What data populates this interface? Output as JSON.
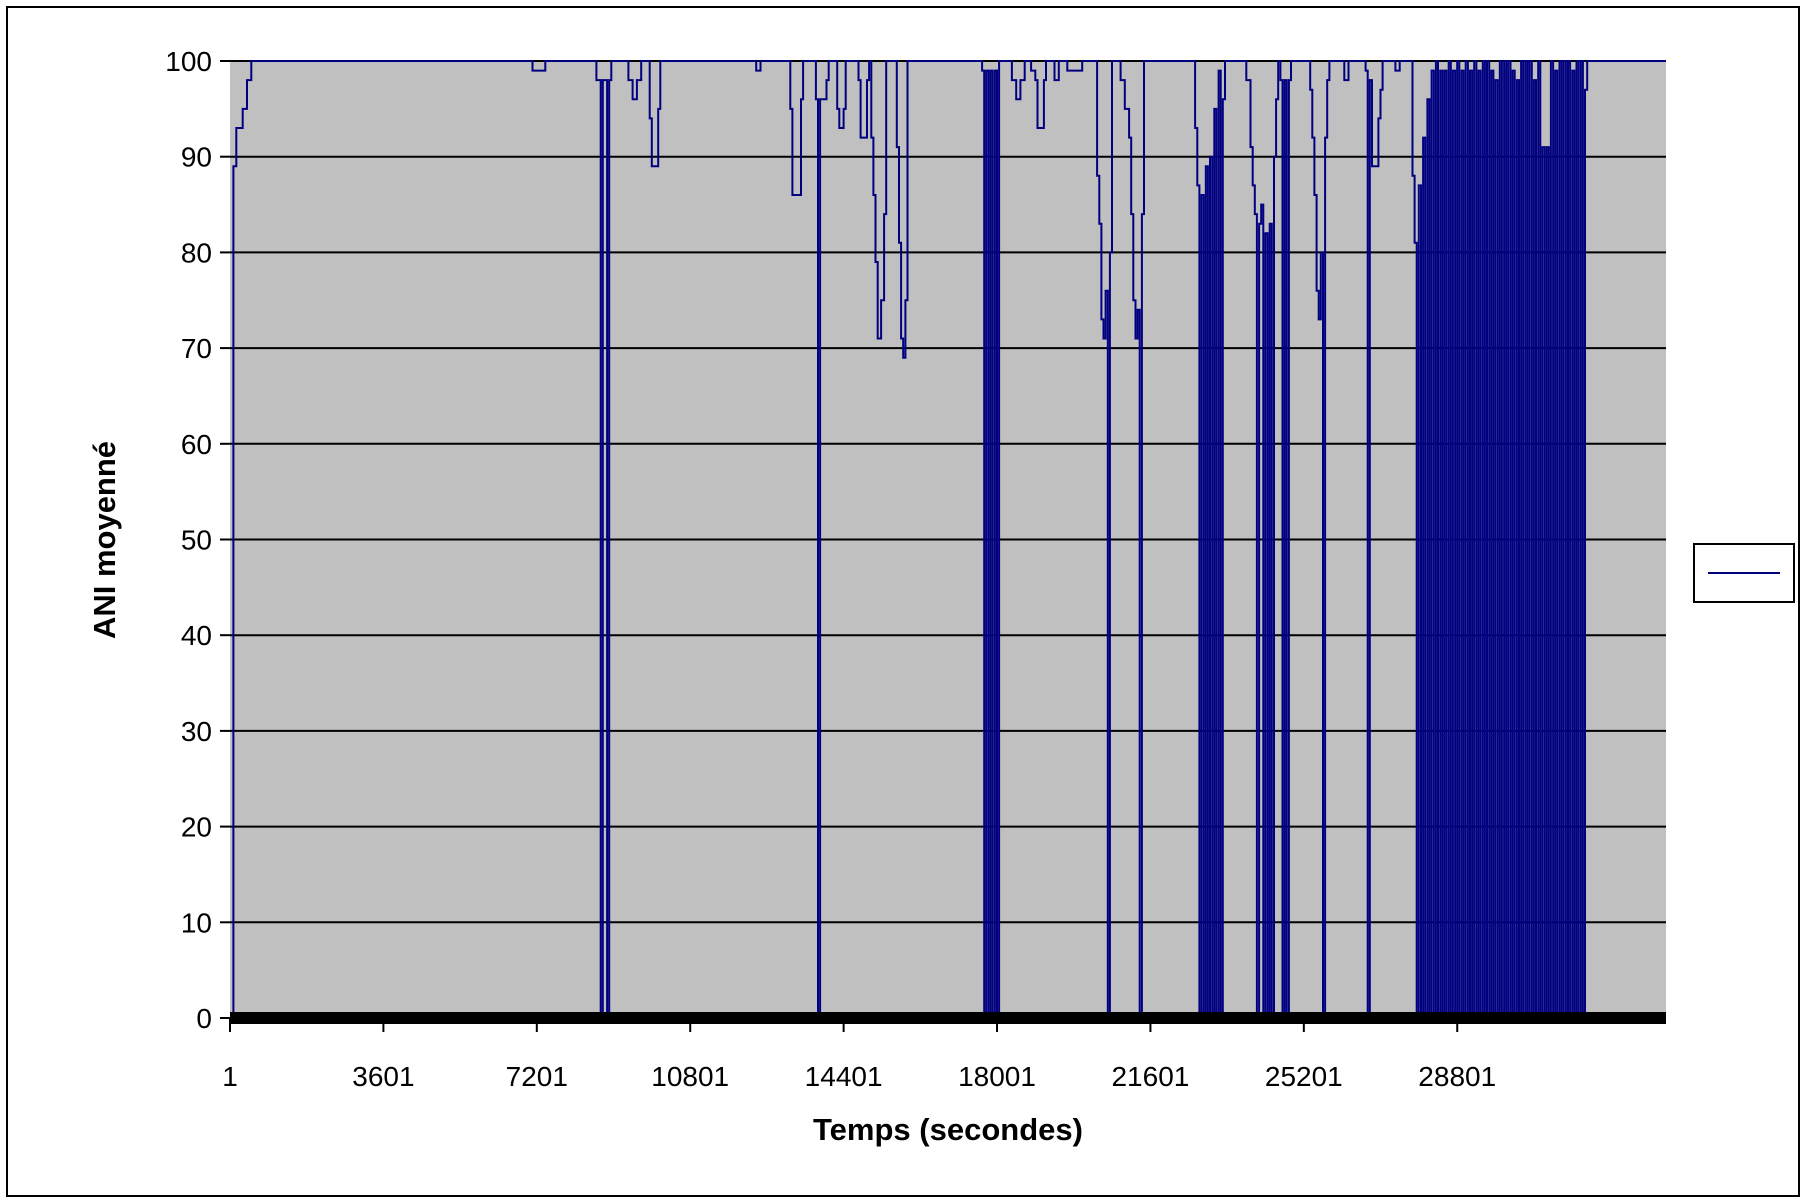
{
  "chart_data": {
    "type": "line",
    "title": "",
    "xlabel": "Temps (secondes)",
    "ylabel": "ANI moyenné",
    "xlim": [
      1,
      33700
    ],
    "ylim": [
      0,
      100
    ],
    "x_ticks": [
      "1",
      "3601",
      "7201",
      "10801",
      "14401",
      "18001",
      "21601",
      "25201",
      "28801"
    ],
    "y_ticks": [
      "0",
      "10",
      "20",
      "30",
      "40",
      "50",
      "60",
      "70",
      "80",
      "90",
      "100"
    ],
    "grid": "horizontal",
    "legend_position": "right",
    "colors": {
      "plot_background": "#c0c0c0",
      "series": "#000080",
      "gridline": "#000000"
    },
    "series": [
      {
        "points": [
          [
            1,
            0
          ],
          [
            60,
            0
          ],
          [
            80,
            89
          ],
          [
            150,
            93
          ],
          [
            300,
            95
          ],
          [
            400,
            98
          ],
          [
            500,
            100
          ],
          [
            7000,
            100
          ],
          [
            7100,
            99
          ],
          [
            7300,
            99
          ],
          [
            7400,
            100
          ],
          [
            8500,
            100
          ],
          [
            8600,
            98
          ],
          [
            8700,
            0
          ],
          [
            8750,
            98
          ],
          [
            8850,
            0
          ],
          [
            8900,
            98
          ],
          [
            8950,
            100
          ],
          [
            9300,
            100
          ],
          [
            9350,
            98
          ],
          [
            9450,
            96
          ],
          [
            9550,
            98
          ],
          [
            9650,
            100
          ],
          [
            9800,
            100
          ],
          [
            9850,
            94
          ],
          [
            9900,
            89
          ],
          [
            10000,
            89
          ],
          [
            10050,
            95
          ],
          [
            10100,
            100
          ],
          [
            12300,
            100
          ],
          [
            12350,
            99
          ],
          [
            12450,
            100
          ],
          [
            13100,
            100
          ],
          [
            13150,
            95
          ],
          [
            13200,
            86
          ],
          [
            13350,
            86
          ],
          [
            13400,
            96
          ],
          [
            13450,
            100
          ],
          [
            13700,
            100
          ],
          [
            13750,
            96
          ],
          [
            13800,
            0
          ],
          [
            13850,
            96
          ],
          [
            13950,
            96
          ],
          [
            14000,
            98
          ],
          [
            14050,
            100
          ],
          [
            14200,
            100
          ],
          [
            14250,
            95
          ],
          [
            14300,
            93
          ],
          [
            14400,
            95
          ],
          [
            14450,
            100
          ],
          [
            14700,
            100
          ],
          [
            14750,
            98
          ],
          [
            14800,
            92
          ],
          [
            14900,
            92
          ],
          [
            14950,
            98
          ],
          [
            15000,
            100
          ],
          [
            15050,
            92
          ],
          [
            15100,
            86
          ],
          [
            15150,
            79
          ],
          [
            15200,
            71
          ],
          [
            15280,
            75
          ],
          [
            15350,
            84
          ],
          [
            15400,
            100
          ],
          [
            15600,
            100
          ],
          [
            15650,
            91
          ],
          [
            15700,
            81
          ],
          [
            15750,
            71
          ],
          [
            15800,
            69
          ],
          [
            15850,
            75
          ],
          [
            15900,
            100
          ],
          [
            17600,
            100
          ],
          [
            17650,
            99
          ],
          [
            17700,
            0
          ],
          [
            17750,
            99
          ],
          [
            17800,
            0
          ],
          [
            17850,
            99
          ],
          [
            17900,
            0
          ],
          [
            17950,
            99
          ],
          [
            18000,
            0
          ],
          [
            18050,
            100
          ],
          [
            18300,
            100
          ],
          [
            18350,
            98
          ],
          [
            18450,
            96
          ],
          [
            18550,
            98
          ],
          [
            18650,
            100
          ],
          [
            18750,
            100
          ],
          [
            18800,
            99
          ],
          [
            18900,
            98
          ],
          [
            18950,
            93
          ],
          [
            19050,
            93
          ],
          [
            19100,
            98
          ],
          [
            19150,
            100
          ],
          [
            19300,
            100
          ],
          [
            19350,
            98
          ],
          [
            19450,
            100
          ],
          [
            19600,
            100
          ],
          [
            19650,
            99
          ],
          [
            19950,
            99
          ],
          [
            20000,
            100
          ],
          [
            20300,
            100
          ],
          [
            20350,
            88
          ],
          [
            20400,
            83
          ],
          [
            20450,
            73
          ],
          [
            20500,
            71
          ],
          [
            20550,
            76
          ],
          [
            20600,
            0
          ],
          [
            20650,
            80
          ],
          [
            20700,
            100
          ],
          [
            20850,
            100
          ],
          [
            20900,
            98
          ],
          [
            21000,
            95
          ],
          [
            21100,
            92
          ],
          [
            21150,
            84
          ],
          [
            21200,
            75
          ],
          [
            21250,
            71
          ],
          [
            21300,
            74
          ],
          [
            21350,
            0
          ],
          [
            21400,
            84
          ],
          [
            21450,
            100
          ],
          [
            22600,
            100
          ],
          [
            22650,
            93
          ],
          [
            22700,
            87
          ],
          [
            22750,
            0
          ],
          [
            22800,
            86
          ],
          [
            22850,
            0
          ],
          [
            22900,
            89
          ],
          [
            22950,
            0
          ],
          [
            23000,
            90
          ],
          [
            23050,
            0
          ],
          [
            23100,
            95
          ],
          [
            23150,
            0
          ],
          [
            23200,
            99
          ],
          [
            23250,
            0
          ],
          [
            23300,
            96
          ],
          [
            23350,
            100
          ],
          [
            23800,
            100
          ],
          [
            23850,
            98
          ],
          [
            23950,
            91
          ],
          [
            24000,
            87
          ],
          [
            24050,
            84
          ],
          [
            24100,
            0
          ],
          [
            24150,
            83
          ],
          [
            24200,
            85
          ],
          [
            24250,
            0
          ],
          [
            24300,
            82
          ],
          [
            24350,
            0
          ],
          [
            24400,
            83
          ],
          [
            24450,
            0
          ],
          [
            24500,
            90
          ],
          [
            24550,
            96
          ],
          [
            24600,
            100
          ],
          [
            24650,
            98
          ],
          [
            24700,
            0
          ],
          [
            24750,
            98
          ],
          [
            24800,
            0
          ],
          [
            24850,
            98
          ],
          [
            24900,
            100
          ],
          [
            25300,
            100
          ],
          [
            25350,
            97
          ],
          [
            25400,
            92
          ],
          [
            25450,
            86
          ],
          [
            25500,
            76
          ],
          [
            25550,
            73
          ],
          [
            25600,
            80
          ],
          [
            25650,
            0
          ],
          [
            25700,
            92
          ],
          [
            25750,
            98
          ],
          [
            25800,
            100
          ],
          [
            26100,
            100
          ],
          [
            26150,
            98
          ],
          [
            26250,
            100
          ],
          [
            26600,
            100
          ],
          [
            26650,
            99
          ],
          [
            26700,
            0
          ],
          [
            26750,
            98
          ],
          [
            26800,
            89
          ],
          [
            26900,
            89
          ],
          [
            26950,
            94
          ],
          [
            27000,
            97
          ],
          [
            27050,
            100
          ],
          [
            27300,
            100
          ],
          [
            27350,
            99
          ],
          [
            27450,
            100
          ],
          [
            27700,
            100
          ],
          [
            27750,
            88
          ],
          [
            27800,
            81
          ],
          [
            27850,
            0
          ],
          [
            27900,
            87
          ],
          [
            27950,
            0
          ],
          [
            28000,
            92
          ],
          [
            28050,
            0
          ],
          [
            28100,
            96
          ],
          [
            28150,
            0
          ],
          [
            28200,
            99
          ],
          [
            28250,
            0
          ],
          [
            28300,
            100
          ],
          [
            28350,
            0
          ],
          [
            28400,
            99
          ],
          [
            28450,
            0
          ],
          [
            28500,
            99
          ],
          [
            28550,
            0
          ],
          [
            28600,
            100
          ],
          [
            28650,
            0
          ],
          [
            28700,
            99
          ],
          [
            28750,
            0
          ],
          [
            28800,
            100
          ],
          [
            28850,
            0
          ],
          [
            28900,
            99
          ],
          [
            28950,
            0
          ],
          [
            29000,
            100
          ],
          [
            29050,
            0
          ],
          [
            29100,
            99
          ],
          [
            29150,
            0
          ],
          [
            29200,
            100
          ],
          [
            29250,
            0
          ],
          [
            29300,
            99
          ],
          [
            29350,
            0
          ],
          [
            29400,
            100
          ],
          [
            29450,
            0
          ],
          [
            29500,
            100
          ],
          [
            29550,
            0
          ],
          [
            29600,
            99
          ],
          [
            29650,
            0
          ],
          [
            29700,
            98
          ],
          [
            29750,
            0
          ],
          [
            29800,
            100
          ],
          [
            29850,
            0
          ],
          [
            29900,
            100
          ],
          [
            29950,
            0
          ],
          [
            30000,
            100
          ],
          [
            30050,
            0
          ],
          [
            30100,
            99
          ],
          [
            30150,
            0
          ],
          [
            30200,
            98
          ],
          [
            30250,
            0
          ],
          [
            30300,
            100
          ],
          [
            30350,
            0
          ],
          [
            30400,
            100
          ],
          [
            30450,
            0
          ],
          [
            30500,
            100
          ],
          [
            30550,
            0
          ],
          [
            30600,
            98
          ],
          [
            30650,
            0
          ],
          [
            30700,
            100
          ],
          [
            30750,
            0
          ],
          [
            30800,
            91
          ],
          [
            30850,
            0
          ],
          [
            30900,
            91
          ],
          [
            30950,
            0
          ],
          [
            31000,
            100
          ],
          [
            31050,
            0
          ],
          [
            31100,
            99
          ],
          [
            31150,
            0
          ],
          [
            31200,
            100
          ],
          [
            31250,
            0
          ],
          [
            31300,
            100
          ],
          [
            31350,
            0
          ],
          [
            31400,
            100
          ],
          [
            31450,
            0
          ],
          [
            31500,
            99
          ],
          [
            31550,
            0
          ],
          [
            31600,
            100
          ],
          [
            31650,
            0
          ],
          [
            31700,
            100
          ],
          [
            31750,
            0
          ],
          [
            31800,
            97
          ],
          [
            31850,
            100
          ]
        ]
      }
    ]
  }
}
